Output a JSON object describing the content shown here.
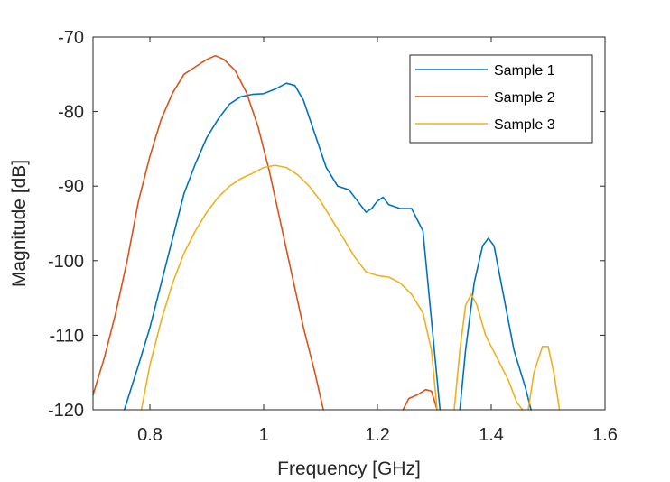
{
  "chart_data": {
    "type": "line",
    "title": "",
    "xlabel": "Frequency [GHz]",
    "ylabel": "Magnitude [dB]",
    "xlim": [
      0.7,
      1.6
    ],
    "ylim": [
      -120,
      -70
    ],
    "xticks": [
      0.8,
      1,
      1.2,
      1.4,
      1.6
    ],
    "yticks": [
      -70,
      -80,
      -90,
      -100,
      -110,
      -120
    ],
    "xtick_labels": [
      "0.8",
      "1",
      "1.2",
      "1.4",
      "1.6"
    ],
    "ytick_labels": [
      "-70",
      "-80",
      "-90",
      "-100",
      "-110",
      "-120"
    ],
    "grid": false,
    "legend_position": "top-right",
    "series": [
      {
        "name": "Sample 1",
        "color": "#0072BD",
        "segments": [
          [
            [
              0.755,
              -120
            ],
            [
              0.78,
              -114
            ],
            [
              0.8,
              -109
            ],
            [
              0.82,
              -103
            ],
            [
              0.84,
              -97
            ],
            [
              0.86,
              -91
            ],
            [
              0.88,
              -87
            ],
            [
              0.9,
              -83.5
            ],
            [
              0.92,
              -81
            ],
            [
              0.94,
              -79
            ],
            [
              0.96,
              -78
            ],
            [
              0.98,
              -77.7
            ],
            [
              1.0,
              -77.6
            ],
            [
              1.02,
              -77
            ],
            [
              1.04,
              -76.2
            ],
            [
              1.055,
              -76.5
            ],
            [
              1.07,
              -78.5
            ],
            [
              1.09,
              -83
            ],
            [
              1.11,
              -87.5
            ],
            [
              1.13,
              -90
            ],
            [
              1.15,
              -90.5
            ],
            [
              1.17,
              -92.5
            ],
            [
              1.18,
              -93.5
            ],
            [
              1.19,
              -93
            ],
            [
              1.2,
              -92
            ],
            [
              1.21,
              -91.5
            ],
            [
              1.22,
              -92.5
            ],
            [
              1.24,
              -93
            ],
            [
              1.26,
              -93
            ],
            [
              1.28,
              -96
            ],
            [
              1.29,
              -104
            ],
            [
              1.3,
              -112
            ],
            [
              1.31,
              -120
            ]
          ],
          [
            [
              1.345,
              -120
            ],
            [
              1.355,
              -112
            ],
            [
              1.37,
              -103
            ],
            [
              1.385,
              -98
            ],
            [
              1.395,
              -97
            ],
            [
              1.405,
              -98
            ],
            [
              1.42,
              -104
            ],
            [
              1.44,
              -112
            ],
            [
              1.46,
              -117
            ],
            [
              1.47,
              -120
            ]
          ]
        ]
      },
      {
        "name": "Sample 2",
        "color": "#D95319",
        "segments": [
          [
            [
              0.7,
              -118
            ],
            [
              0.72,
              -113
            ],
            [
              0.74,
              -107
            ],
            [
              0.76,
              -100
            ],
            [
              0.78,
              -92
            ],
            [
              0.8,
              -86
            ],
            [
              0.82,
              -81
            ],
            [
              0.84,
              -77.5
            ],
            [
              0.86,
              -75
            ],
            [
              0.88,
              -74
            ],
            [
              0.9,
              -73
            ],
            [
              0.915,
              -72.5
            ],
            [
              0.93,
              -73
            ],
            [
              0.95,
              -74.5
            ],
            [
              0.97,
              -77.5
            ],
            [
              0.99,
              -82
            ],
            [
              1.01,
              -88
            ],
            [
              1.03,
              -95
            ],
            [
              1.05,
              -102
            ],
            [
              1.07,
              -109
            ],
            [
              1.09,
              -115
            ],
            [
              1.105,
              -120
            ]
          ],
          [
            [
              1.245,
              -120
            ],
            [
              1.255,
              -118.5
            ],
            [
              1.27,
              -118
            ],
            [
              1.285,
              -117.3
            ],
            [
              1.295,
              -117.5
            ],
            [
              1.305,
              -120
            ]
          ]
        ]
      },
      {
        "name": "Sample 3",
        "color": "#EDB120",
        "segments": [
          [
            [
              0.785,
              -120
            ],
            [
              0.8,
              -114
            ],
            [
              0.82,
              -108
            ],
            [
              0.84,
              -103
            ],
            [
              0.86,
              -99
            ],
            [
              0.88,
              -96
            ],
            [
              0.9,
              -93.5
            ],
            [
              0.92,
              -91.5
            ],
            [
              0.94,
              -90
            ],
            [
              0.96,
              -89
            ],
            [
              0.98,
              -88.3
            ],
            [
              1.0,
              -87.5
            ],
            [
              1.02,
              -87.2
            ],
            [
              1.04,
              -87.5
            ],
            [
              1.06,
              -88.5
            ],
            [
              1.08,
              -90
            ],
            [
              1.1,
              -92
            ],
            [
              1.12,
              -94.5
            ],
            [
              1.14,
              -97
            ],
            [
              1.16,
              -99.5
            ],
            [
              1.18,
              -101.5
            ],
            [
              1.2,
              -102
            ],
            [
              1.22,
              -102.2
            ],
            [
              1.24,
              -103
            ],
            [
              1.26,
              -104.5
            ],
            [
              1.28,
              -107
            ],
            [
              1.295,
              -112
            ],
            [
              1.305,
              -120
            ]
          ],
          [
            [
              1.335,
              -120
            ],
            [
              1.345,
              -112
            ],
            [
              1.355,
              -106
            ],
            [
              1.365,
              -104.5
            ],
            [
              1.375,
              -106
            ],
            [
              1.39,
              -110
            ],
            [
              1.41,
              -113
            ],
            [
              1.43,
              -116
            ],
            [
              1.445,
              -119
            ],
            [
              1.455,
              -120
            ]
          ],
          [
            [
              1.465,
              -120
            ],
            [
              1.475,
              -115
            ],
            [
              1.49,
              -111.5
            ],
            [
              1.5,
              -111.5
            ],
            [
              1.51,
              -115
            ],
            [
              1.52,
              -120
            ]
          ]
        ]
      }
    ]
  }
}
